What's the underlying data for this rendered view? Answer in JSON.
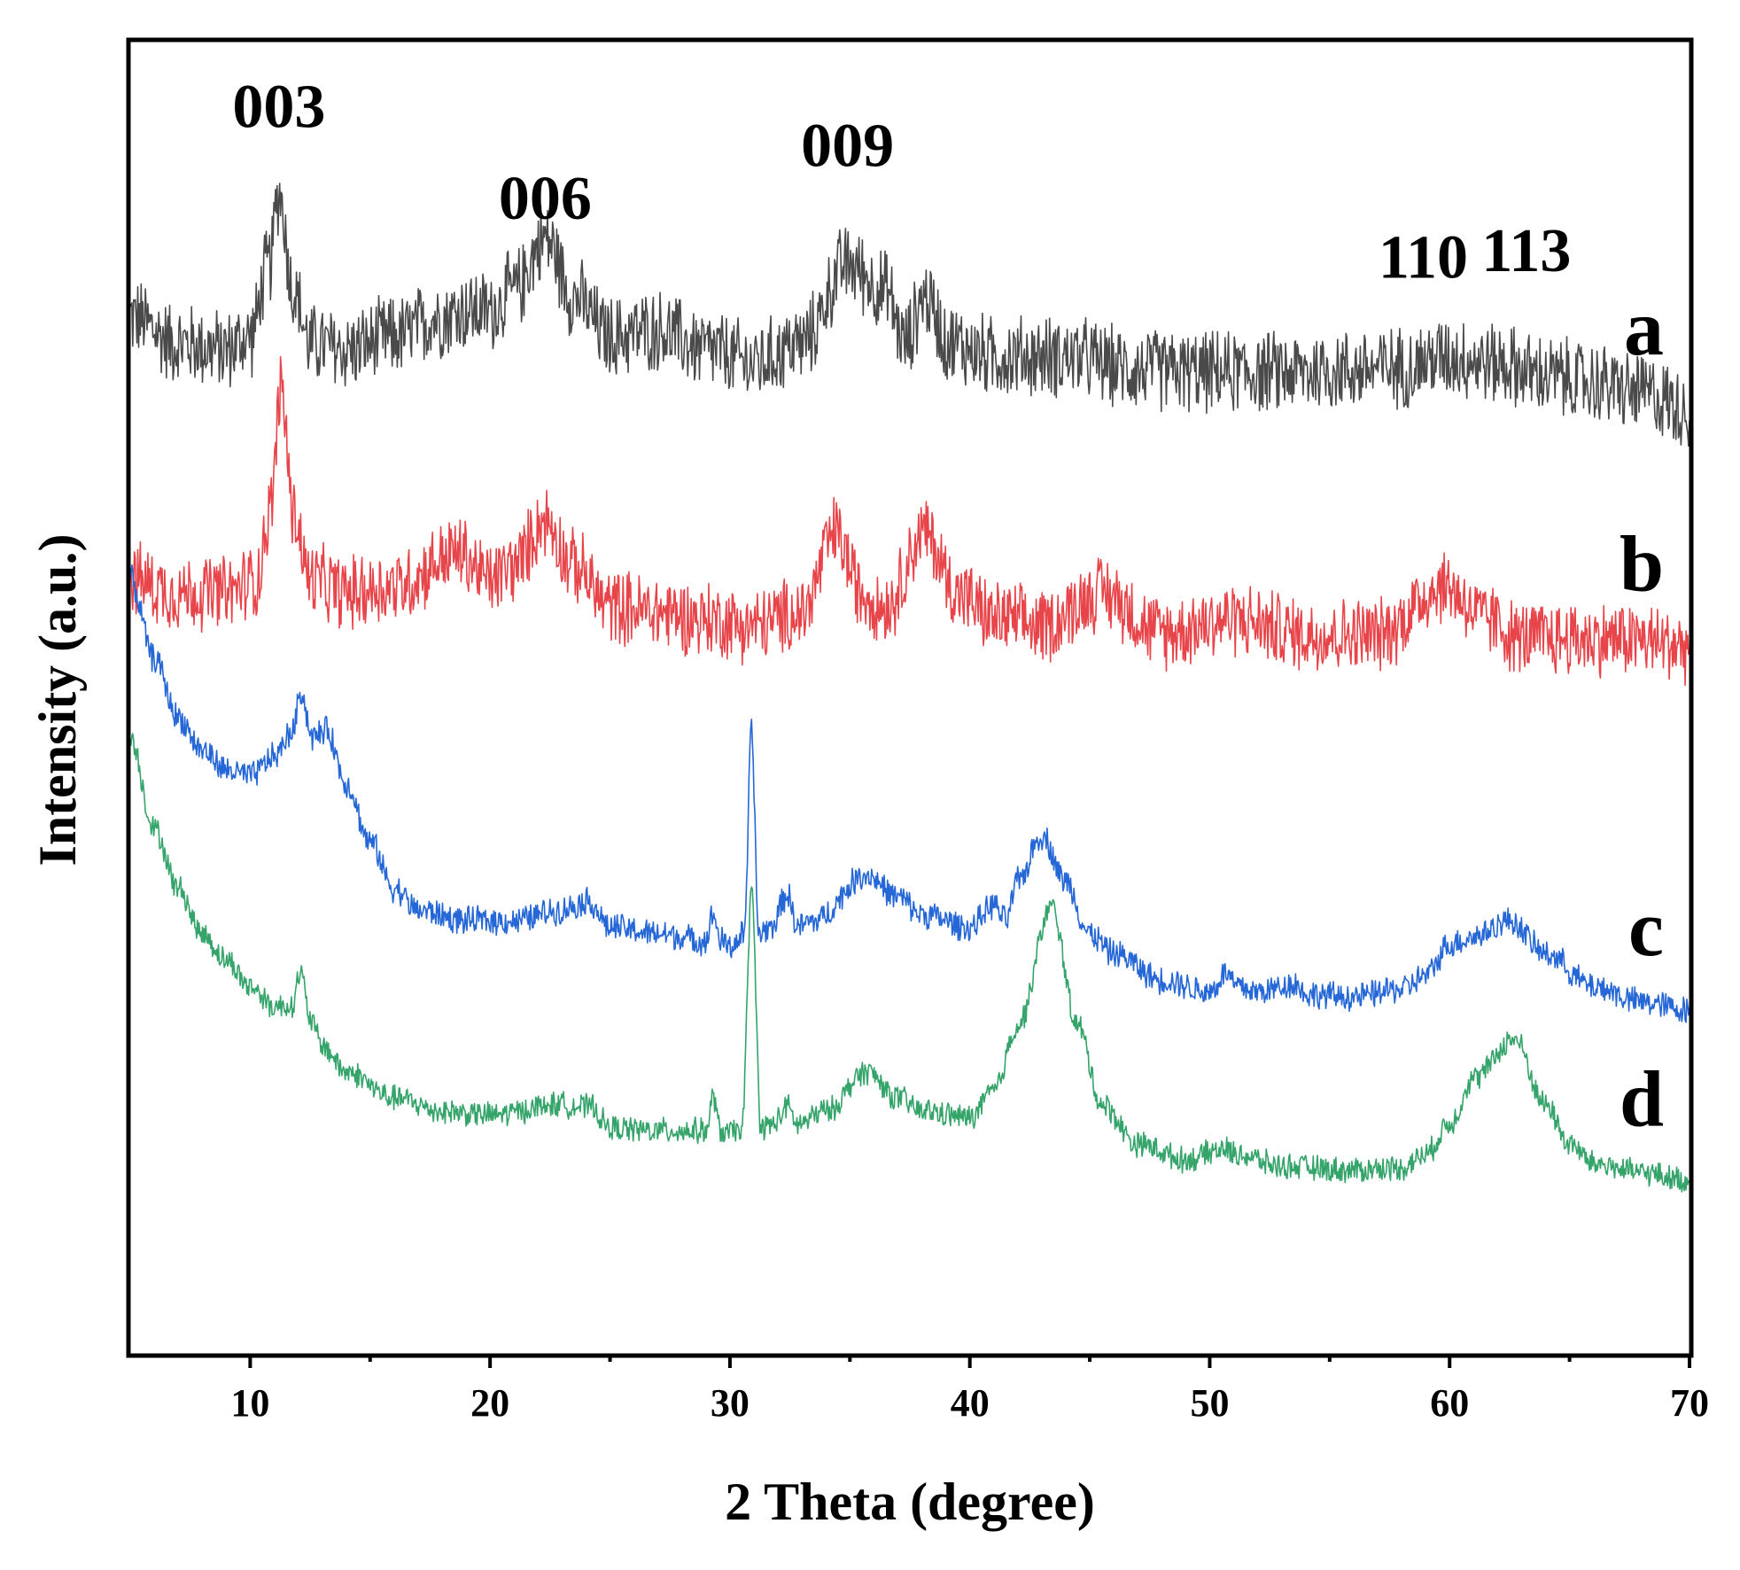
{
  "chart_data": {
    "type": "line",
    "xlabel": "2 Theta (degree)",
    "ylabel": "Intensity (a.u.)",
    "xlim": [
      5,
      70
    ],
    "ylim": [
      0,
      1
    ],
    "x_ticks": [
      10,
      20,
      30,
      40,
      50,
      60,
      70
    ],
    "x_tick_labels": [
      "10",
      "20",
      "30",
      "40",
      "50",
      "60",
      "70"
    ],
    "x_minor_ticks": [
      15,
      25,
      35,
      45,
      55,
      65
    ],
    "show_y_ticks": false,
    "peak_labels": [
      {
        "text": "003",
        "x": 11.2,
        "y": 0.935
      },
      {
        "text": "006",
        "x": 22.3,
        "y": 0.865
      },
      {
        "text": "009",
        "x": 34.9,
        "y": 0.905
      },
      {
        "text": "110",
        "x": 58.9,
        "y": 0.82
      },
      {
        "text": "113",
        "x": 63.2,
        "y": 0.825
      }
    ],
    "series": [
      {
        "name": "a",
        "color": "#4a4a4a",
        "noise": 0.035,
        "x": [
          5,
          7,
          9,
          10,
          10.8,
          11.2,
          11.8,
          12.5,
          14,
          16,
          18,
          19,
          20,
          21,
          22.3,
          23.5,
          25,
          27,
          29,
          31,
          33,
          34.9,
          36.5,
          37.3,
          38.1,
          39.2,
          41,
          44,
          47,
          50,
          53,
          56,
          58,
          60,
          62,
          64,
          66,
          68,
          70
        ],
        "y": [
          0.79,
          0.77,
          0.765,
          0.775,
          0.83,
          0.885,
          0.81,
          0.77,
          0.765,
          0.775,
          0.79,
          0.795,
          0.795,
          0.81,
          0.85,
          0.805,
          0.775,
          0.78,
          0.765,
          0.755,
          0.77,
          0.83,
          0.81,
          0.77,
          0.805,
          0.77,
          0.76,
          0.76,
          0.75,
          0.748,
          0.748,
          0.75,
          0.752,
          0.76,
          0.755,
          0.745,
          0.74,
          0.732,
          0.72
        ]
      },
      {
        "name": "b",
        "color": "#e8454b",
        "noise": 0.032,
        "x": [
          5,
          7,
          9,
          10.3,
          10.8,
          11.3,
          11.8,
          12.5,
          14,
          16,
          18.7,
          20,
          21,
          22.3,
          23.5,
          25,
          27,
          29,
          31,
          33,
          34.4,
          35.5,
          36.5,
          38.1,
          39.5,
          41,
          43,
          45.5,
          48,
          51,
          54,
          57,
          59.8,
          61.5,
          63,
          65,
          67,
          70
        ],
        "y": [
          0.59,
          0.58,
          0.58,
          0.59,
          0.64,
          0.735,
          0.64,
          0.59,
          0.58,
          0.585,
          0.61,
          0.59,
          0.6,
          0.635,
          0.6,
          0.57,
          0.565,
          0.56,
          0.555,
          0.565,
          0.625,
          0.58,
          0.57,
          0.625,
          0.58,
          0.56,
          0.555,
          0.58,
          0.55,
          0.56,
          0.548,
          0.548,
          0.585,
          0.56,
          0.545,
          0.545,
          0.545,
          0.54
        ]
      },
      {
        "name": "c",
        "color": "#2567d6",
        "noise": 0.012,
        "x": [
          5,
          6,
          7,
          8,
          9,
          10,
          11,
          11.8,
          12.1,
          12.6,
          13.2,
          14,
          15,
          16,
          17,
          19,
          21,
          22.9,
          24.1,
          25,
          27,
          29,
          29.3,
          29.6,
          30,
          30.6,
          30.9,
          31.2,
          31.7,
          32.4,
          32.8,
          33.5,
          35.7,
          37,
          38,
          40,
          41,
          41.5,
          42,
          43,
          44,
          45,
          46,
          48,
          50,
          50.7,
          51.1,
          52,
          53.6,
          54,
          56,
          58,
          59,
          60,
          61,
          62.5,
          64,
          66,
          68,
          70
        ],
        "y": [
          0.59,
          0.53,
          0.485,
          0.46,
          0.445,
          0.44,
          0.455,
          0.475,
          0.505,
          0.47,
          0.475,
          0.435,
          0.39,
          0.355,
          0.338,
          0.33,
          0.33,
          0.338,
          0.345,
          0.325,
          0.32,
          0.315,
          0.335,
          0.315,
          0.31,
          0.32,
          0.475,
          0.32,
          0.325,
          0.35,
          0.325,
          0.33,
          0.365,
          0.348,
          0.335,
          0.325,
          0.342,
          0.33,
          0.36,
          0.395,
          0.36,
          0.32,
          0.305,
          0.285,
          0.276,
          0.29,
          0.28,
          0.276,
          0.282,
          0.274,
          0.272,
          0.278,
          0.288,
          0.312,
          0.318,
          0.33,
          0.305,
          0.28,
          0.268,
          0.262
        ]
      },
      {
        "name": "d",
        "color": "#35a46a",
        "noise": 0.011,
        "x": [
          5,
          6,
          7,
          8,
          9,
          10,
          11,
          11.7,
          12.1,
          12.5,
          13,
          14,
          16,
          18,
          20,
          22.9,
          24.2,
          25,
          27,
          29,
          29.3,
          29.6,
          30,
          30.5,
          30.9,
          31.3,
          31.8,
          32.4,
          32.8,
          34,
          35.7,
          37,
          38,
          40,
          41,
          42,
          43.4,
          44.5,
          45.5,
          47,
          49,
          50.6,
          51.1,
          53,
          56,
          58,
          59,
          60,
          61,
          62.7,
          64,
          65,
          66,
          68,
          70
        ],
        "y": [
          0.47,
          0.4,
          0.355,
          0.32,
          0.3,
          0.28,
          0.265,
          0.265,
          0.29,
          0.255,
          0.235,
          0.215,
          0.195,
          0.185,
          0.182,
          0.19,
          0.188,
          0.172,
          0.17,
          0.17,
          0.195,
          0.17,
          0.168,
          0.172,
          0.35,
          0.172,
          0.175,
          0.188,
          0.175,
          0.185,
          0.215,
          0.195,
          0.185,
          0.18,
          0.2,
          0.25,
          0.34,
          0.25,
          0.19,
          0.16,
          0.148,
          0.156,
          0.152,
          0.143,
          0.14,
          0.142,
          0.152,
          0.175,
          0.21,
          0.24,
          0.19,
          0.16,
          0.145,
          0.138,
          0.132
        ]
      }
    ]
  }
}
